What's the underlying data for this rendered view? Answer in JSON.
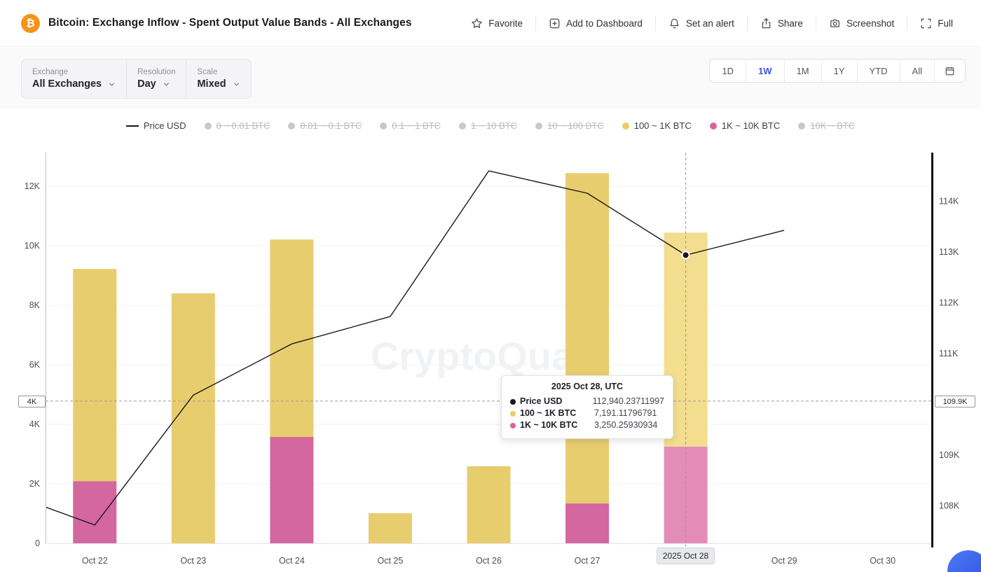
{
  "header": {
    "coin_symbol": "₿",
    "title": "Bitcoin: Exchange Inflow - Spent Output Value Bands - All Exchanges",
    "actions": [
      {
        "id": "favorite",
        "icon": "star-icon",
        "label": "Favorite"
      },
      {
        "id": "add-to-dashboard",
        "icon": "dashboard-add-icon",
        "label": "Add to Dashboard"
      },
      {
        "id": "set-alert",
        "icon": "bell-icon",
        "label": "Set an alert"
      },
      {
        "id": "share",
        "icon": "share-icon",
        "label": "Share"
      },
      {
        "id": "screenshot",
        "icon": "camera-icon",
        "label": "Screenshot"
      },
      {
        "id": "full",
        "icon": "fullscreen-icon",
        "label": "Full"
      }
    ]
  },
  "filters": [
    {
      "id": "exchange",
      "label": "Exchange",
      "value": "All Exchanges",
      "icon": "chevron-down-icon"
    },
    {
      "id": "resolution",
      "label": "Resolution",
      "value": "Day",
      "icon": "chevron-down-icon"
    },
    {
      "id": "scale",
      "label": "Scale",
      "value": "Mixed",
      "icon": "chevron-down-icon"
    }
  ],
  "range_selector": {
    "options": [
      "1D",
      "1W",
      "1M",
      "1Y",
      "YTD",
      "All"
    ],
    "selected": "1W",
    "calendar_icon": "calendar-icon"
  },
  "watermark": "CryptoQuant",
  "colors": {
    "accent_blue": "#3a53e8",
    "bitcoin_orange": "#f7931a",
    "bar_yellow": "#e8cd6e",
    "bar_yellow_hover": "#f3dd8e",
    "bar_pink": "#d4679f",
    "bar_pink_hover": "#e48cb8",
    "price_line": "#17181c",
    "disabled_gray": "#c5c8cd"
  },
  "chart_data": {
    "type": "bar+line",
    "title": "Bitcoin: Exchange Inflow - Spent Output Value Bands - All Exchanges",
    "categories": [
      "Oct 22",
      "Oct 23",
      "Oct 24",
      "Oct 25",
      "Oct 26",
      "Oct 27",
      "Oct 28",
      "Oct 29",
      "Oct 30"
    ],
    "bar_series": [
      {
        "name": "1K ~ 10K BTC",
        "color": "#d4679f",
        "values": [
          2090,
          0,
          3575,
          0,
          0,
          1340,
          3250.25930934,
          null,
          null
        ]
      },
      {
        "name": "100 ~ 1K BTC",
        "color": "#e8cd6e",
        "values": [
          7130,
          8400,
          6635,
          1010,
          2590,
          11100,
          7191.11796791,
          null,
          null
        ]
      }
    ],
    "line_series": {
      "name": "Price USD",
      "color": "#17181c",
      "lead_in": {
        "category": "Oct 21",
        "value": 108330
      },
      "values": [
        107620,
        110180,
        111190,
        111730,
        114600,
        114160,
        112940.23711997,
        113430,
        null
      ]
    },
    "left_axis": {
      "min": 0,
      "max": 13130,
      "ticks": [
        {
          "label": "0",
          "value": 0
        },
        {
          "label": "2K",
          "value": 2000
        },
        {
          "label": "4K",
          "value": 4000
        },
        {
          "label": "6K",
          "value": 6000
        },
        {
          "label": "8K",
          "value": 8000
        },
        {
          "label": "10K",
          "value": 10000
        },
        {
          "label": "12K",
          "value": 12000
        }
      ]
    },
    "right_axis": {
      "min": 107260,
      "max": 114960,
      "ticks": [
        {
          "label": "108K",
          "value": 108000
        },
        {
          "label": "109K",
          "value": 109000
        },
        {
          "label": "111K",
          "value": 111000
        },
        {
          "label": "112K",
          "value": 112000
        },
        {
          "label": "113K",
          "value": 113000
        },
        {
          "label": "114K",
          "value": 114000
        }
      ]
    },
    "legend": [
      {
        "label": "Price USD",
        "swatch": "line",
        "color": "#17181c",
        "active": true
      },
      {
        "label": "0 ~ 0.01 BTC",
        "swatch": "dot",
        "color": "#c5c8cd",
        "active": false
      },
      {
        "label": "0.01 ~ 0.1 BTC",
        "swatch": "dot",
        "color": "#c5c8cd",
        "active": false
      },
      {
        "label": "0.1 ~ 1 BTC",
        "swatch": "dot",
        "color": "#c5c8cd",
        "active": false
      },
      {
        "label": "1 ~ 10 BTC",
        "swatch": "dot",
        "color": "#c5c8cd",
        "active": false
      },
      {
        "label": "10 ~ 100 BTC",
        "swatch": "dot",
        "color": "#c5c8cd",
        "active": false
      },
      {
        "label": "100 ~ 1K BTC",
        "swatch": "dot",
        "color": "#e8cd6e",
        "active": true
      },
      {
        "label": "1K ~ 10K BTC",
        "swatch": "dot",
        "color": "#d4679f",
        "active": true
      },
      {
        "label": "10K ~ BTC",
        "swatch": "dot",
        "color": "#c5c8cd",
        "active": false
      }
    ],
    "hover": {
      "index": 6,
      "tooltip": {
        "title": "2025 Oct 28, UTC",
        "rows": [
          {
            "label": "Price USD",
            "value": "112,940.23711997",
            "color": "#17181c"
          },
          {
            "label": "100 ~ 1K BTC",
            "value": "7,191.11796791",
            "color": "#e8cd6e"
          },
          {
            "label": "1K ~ 10K BTC",
            "value": "3,250.25930934",
            "color": "#d4679f"
          }
        ]
      },
      "crosshair": {
        "x_label": "2025 Oct 28",
        "left_label": "4K",
        "right_label": "109.9K",
        "left_axis_value": 4780
      }
    }
  }
}
